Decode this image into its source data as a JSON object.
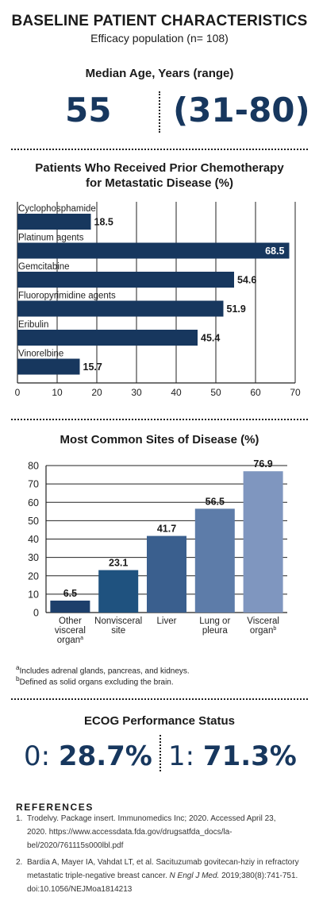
{
  "header": {
    "title": "BASELINE PATIENT CHARACTERISTICS",
    "subtitle": "Efficacy population (n= 108)"
  },
  "age": {
    "heading": "Median Age, Years (range)",
    "median": "55",
    "range": "(31-80)"
  },
  "colors": {
    "navy": "#17375e",
    "bar_shades": [
      "#1d3f6b",
      "#1f527f",
      "#3a5f8e",
      "#5d7ca9",
      "#7f96bf"
    ]
  },
  "chart_data": [
    {
      "type": "bar",
      "orientation": "horizontal",
      "title": "Patients Who Received Prior Chemotherapy\nfor Metastatic Disease (%)",
      "title_lines": [
        "Patients Who Received Prior Chemotherapy",
        "for Metastatic Disease (%)"
      ],
      "categories": [
        "Cyclophosphamide",
        "Platinum agents",
        "Gemcitabine",
        "Fluoropyrimidine agents",
        "Eribulin",
        "Vinorelbine"
      ],
      "values": [
        18.5,
        68.5,
        54.6,
        51.9,
        45.4,
        15.7
      ],
      "value_labels": [
        "18.5",
        "68.5",
        "54.6",
        "51.9",
        "45.4",
        "15.7"
      ],
      "xlim": [
        0,
        70
      ],
      "xticks": [
        0,
        10,
        20,
        30,
        40,
        50,
        60,
        70
      ],
      "grid": "vertical"
    },
    {
      "type": "bar",
      "orientation": "vertical",
      "title": "Most Common Sites of Disease (%)",
      "categories": [
        "Other visceral organ",
        "Nonvisceral site",
        "Liver",
        "Lung or pleura",
        "Visceral organ"
      ],
      "category_lines": [
        [
          "Other",
          "visceral",
          "organ"
        ],
        [
          "Nonvisceral",
          "site"
        ],
        [
          "Liver"
        ],
        [
          "Lung or",
          "pleura"
        ],
        [
          "Visceral",
          "organ"
        ]
      ],
      "category_superscripts": [
        "a",
        "",
        "",
        "",
        "b"
      ],
      "values": [
        6.5,
        23.1,
        41.7,
        56.5,
        76.9
      ],
      "value_labels": [
        "6.5",
        "23.1",
        "41.7",
        "56.5",
        "76.9"
      ],
      "ylim": [
        0,
        80
      ],
      "yticks": [
        0,
        10,
        20,
        30,
        40,
        50,
        60,
        70,
        80
      ],
      "grid": "horizontal"
    }
  ],
  "footnotes": {
    "a_mark": "a",
    "a_text": "Includes adrenal glands, pancreas, and kidneys.",
    "b_mark": "b",
    "b_text": "Defined as solid organs excluding the brain."
  },
  "ecog": {
    "heading": "ECOG Performance Status",
    "s0_label": "0: ",
    "s0_value": "28.7%",
    "s1_label": "1: ",
    "s1_value": "71.3%"
  },
  "references": {
    "heading": "REFERENCES",
    "items": [
      {
        "num": "1.",
        "lines": [
          "Trodelvy. Package insert. Immunomedics Inc; 2020. Accessed April 23,",
          "2020. https://www.accessdata.fda.gov/drugsatfda_docs/la-",
          "bel/2020/761115s000lbl.pdf"
        ]
      },
      {
        "num": "2.",
        "lines_plain": [
          "Bardia A, Mayer IA, Vahdat LT, et al. Sacituzumab govitecan-hziy in refractory",
          "metastatic triple-negative breast cancer. "
        ],
        "journal": "N Engl J Med.",
        "after_journal": " 2019;380(8):741-751.",
        "last_line": "doi:10.1056/NEJMoa1814213"
      }
    ]
  }
}
